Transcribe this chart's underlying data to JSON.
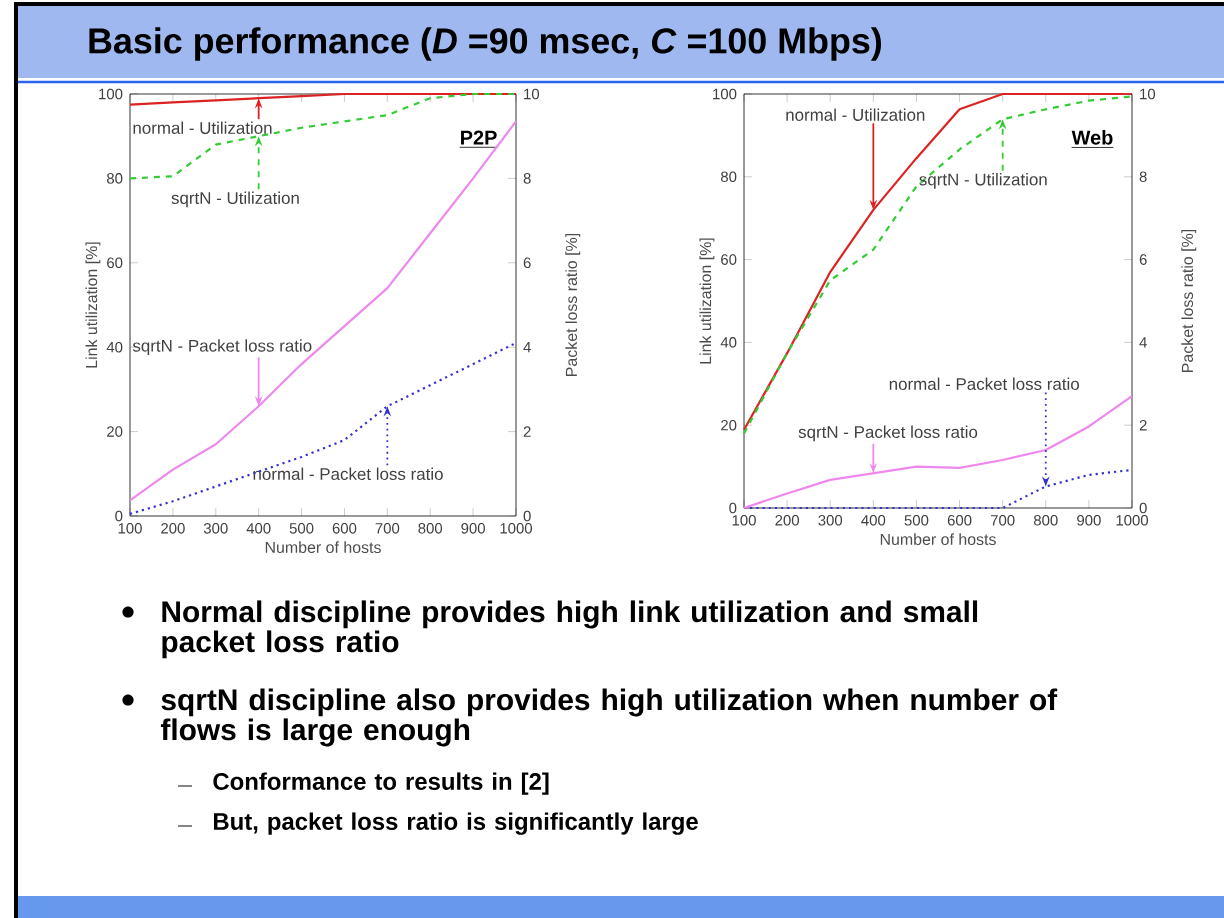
{
  "chart_data": [
    {
      "type": "line",
      "title": "P2P",
      "xlabel": "Number of hosts",
      "ylabel": "Link utilization [%]",
      "y2label": "Packet loss ratio [%]",
      "x": [
        100,
        200,
        300,
        400,
        500,
        600,
        700,
        800,
        900,
        1000
      ],
      "xlim": [
        100,
        1000
      ],
      "xticks": [
        100,
        200,
        300,
        400,
        500,
        600,
        700,
        800,
        900,
        1000
      ],
      "ylim": [
        0,
        100
      ],
      "yticks": [
        0,
        20,
        40,
        60,
        80,
        100
      ],
      "y2lim": [
        0,
        10
      ],
      "y2ticks": [
        0,
        2,
        4,
        6,
        8,
        10
      ],
      "series": [
        {
          "name": "normal - Utilization",
          "color": "#dd2222",
          "line_style": "solid",
          "values": [
            97.5,
            98,
            98.5,
            99,
            99.5,
            100,
            100,
            100,
            100,
            100
          ]
        },
        {
          "name": "sqrtN - Utilization",
          "color": "#33cc33",
          "line_style": "dashed",
          "values": [
            80,
            80.5,
            88,
            90,
            92,
            93.5,
            95,
            99,
            100,
            100
          ]
        },
        {
          "name": "sqrtN - Packet loss ratio",
          "color": "#ee88ee",
          "line_style": "solid",
          "axis": "y2",
          "values": [
            0.37,
            1.1,
            1.7,
            2.6,
            3.6,
            4.5,
            5.4,
            6.7,
            8.0,
            9.35
          ]
        },
        {
          "name": "normal - Packet loss ratio",
          "color": "#3333cc",
          "line_style": "dotted",
          "axis": "y2",
          "values": [
            0.05,
            0.35,
            0.7,
            1.05,
            1.4,
            1.8,
            2.6,
            3.1,
            3.6,
            4.1
          ]
        }
      ]
    },
    {
      "type": "line",
      "title": "Web",
      "xlabel": "Number of hosts",
      "ylabel": "Link utilization [%]",
      "y2label": "Packet loss ratio [%]",
      "x": [
        100,
        200,
        300,
        400,
        500,
        600,
        700,
        800,
        900,
        1000
      ],
      "xlim": [
        100,
        1000
      ],
      "xticks": [
        100,
        200,
        300,
        400,
        500,
        600,
        700,
        800,
        900,
        1000
      ],
      "ylim": [
        0,
        100
      ],
      "yticks": [
        0,
        20,
        40,
        60,
        80,
        100
      ],
      "y2lim": [
        0,
        10
      ],
      "y2ticks": [
        0,
        2,
        4,
        6,
        8,
        10
      ],
      "series": [
        {
          "name": "normal - Utilization",
          "color": "#dd2222",
          "line_style": "solid",
          "values": [
            18.9,
            37.4,
            57,
            72,
            84.5,
            96.3,
            100,
            100,
            100,
            100
          ]
        },
        {
          "name": "sqrtN - Utilization",
          "color": "#33cc33",
          "line_style": "dashed",
          "values": [
            18,
            37.4,
            55,
            62.4,
            77.7,
            86.6,
            93.9,
            96.3,
            98.4,
            99.4
          ]
        },
        {
          "name": "normal - Packet loss ratio",
          "color": "#3333cc",
          "line_style": "dotted",
          "axis": "y2",
          "values": [
            0,
            0,
            0,
            0,
            0,
            0,
            0,
            0.52,
            0.8,
            0.92
          ]
        },
        {
          "name": "sqrtN - Packet loss ratio",
          "color": "#ee88ee",
          "line_style": "solid",
          "axis": "y2",
          "values": [
            0,
            0.35,
            0.68,
            0.84,
            1.0,
            0.97,
            1.16,
            1.4,
            1.97,
            2.7
          ]
        }
      ]
    },
    {
      "type": "other",
      "title": "Basic performance (*D* =90 msec, *C* =100 Mbps)",
      "annotations": [
        "Normal discipline provides high link utilization and small packet loss ratio",
        "sqrtN discipline also provides high utilization when number of flows is large enough",
        "Conformance to results in [2]",
        "But, packet loss ratio is significantly large"
      ]
    }
  ]
}
